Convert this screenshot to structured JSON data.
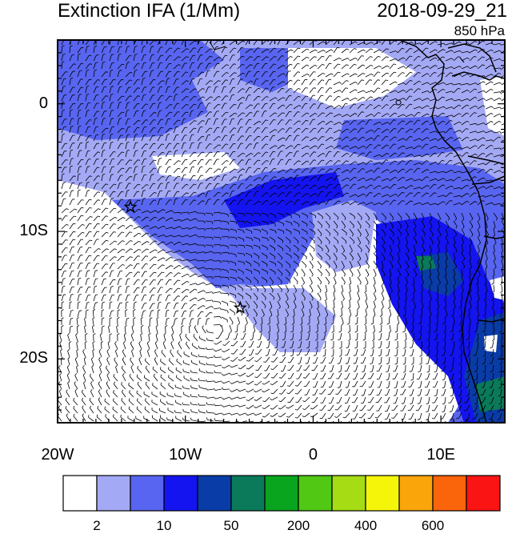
{
  "header": {
    "title": "Extinction IFA (1/Mm)",
    "datetime": "2018-09-29_21",
    "level": "850 hPa"
  },
  "map": {
    "lon_range": [
      -20,
      15
    ],
    "lat_range": [
      -25,
      5
    ],
    "lat_ticks": [
      {
        "value": 0,
        "label": "0"
      },
      {
        "value": -10,
        "label": "10S"
      },
      {
        "value": -20,
        "label": "20S"
      }
    ],
    "lon_ticks": [
      {
        "value": -20,
        "label": "20W"
      },
      {
        "value": -10,
        "label": "10W"
      },
      {
        "value": 0,
        "label": "0"
      },
      {
        "value": 10,
        "label": "10E"
      }
    ],
    "markers": [
      {
        "name": "station-star-1",
        "lon": -14.3,
        "lat": -8.1
      },
      {
        "name": "station-star-2",
        "lon": -5.7,
        "lat": -16.0
      }
    ]
  },
  "colorbar": {
    "colors": [
      "#ffffff",
      "#a4a9f5",
      "#5865f0",
      "#1414f0",
      "#0a3ca8",
      "#0a7a5a",
      "#0aa51e",
      "#50c814",
      "#a5dc14",
      "#f5f50a",
      "#faa50a",
      "#fa640a",
      "#fa1414"
    ],
    "labels": [
      {
        "index": 1,
        "text": "2"
      },
      {
        "index": 3,
        "text": "10"
      },
      {
        "index": 5,
        "text": "50"
      },
      {
        "index": 7,
        "text": "200"
      },
      {
        "index": 9,
        "text": "400"
      },
      {
        "index": 11,
        "text": "600"
      }
    ]
  }
}
